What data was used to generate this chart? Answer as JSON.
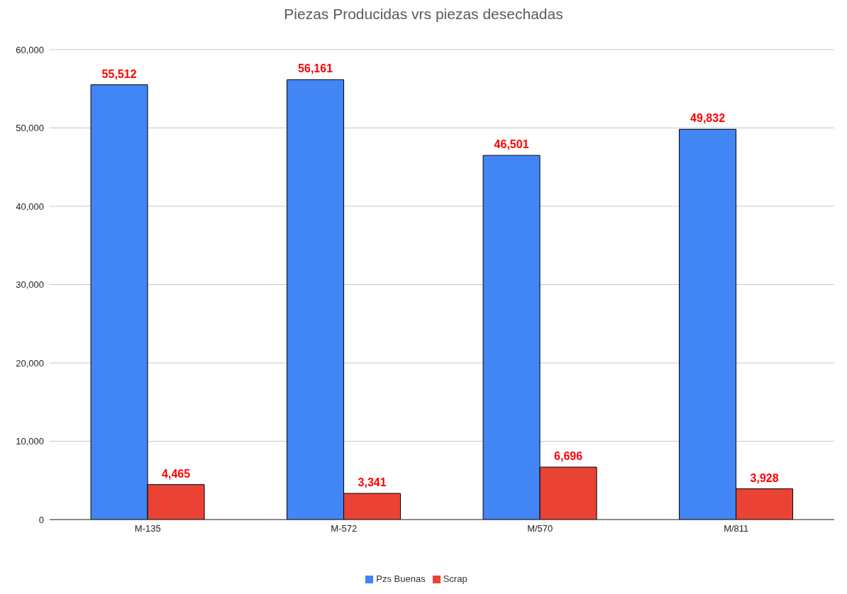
{
  "chart_data": {
    "type": "bar",
    "title": "Piezas Producidas vrs piezas desechadas",
    "categories": [
      "M-135",
      "M-572",
      "M/570",
      "M/811"
    ],
    "series": [
      {
        "name": "Pzs Buenas",
        "color": "#4285f4",
        "values": [
          55512,
          56161,
          46501,
          49832
        ],
        "value_labels": [
          "55,512",
          "56,161",
          "46,501",
          "49,832"
        ]
      },
      {
        "name": "Scrap",
        "color": "#ea4335",
        "values": [
          4465,
          3341,
          6696,
          3928
        ],
        "value_labels": [
          "4,465",
          "3,341",
          "6,696",
          "3,928"
        ]
      }
    ],
    "ylim": [
      0,
      60000
    ],
    "yticks": [
      0,
      {
        "value": 10000,
        "label": "10,000"
      },
      {
        "value": 20000,
        "label": "20,000"
      },
      {
        "value": 30000,
        "label": "30,000"
      },
      {
        "value": 40000,
        "label": "40,000"
      },
      {
        "value": 50000,
        "label": "50,000"
      },
      {
        "value": 60000,
        "label": "60,000"
      }
    ],
    "grid": "y",
    "legend": "bottom"
  }
}
